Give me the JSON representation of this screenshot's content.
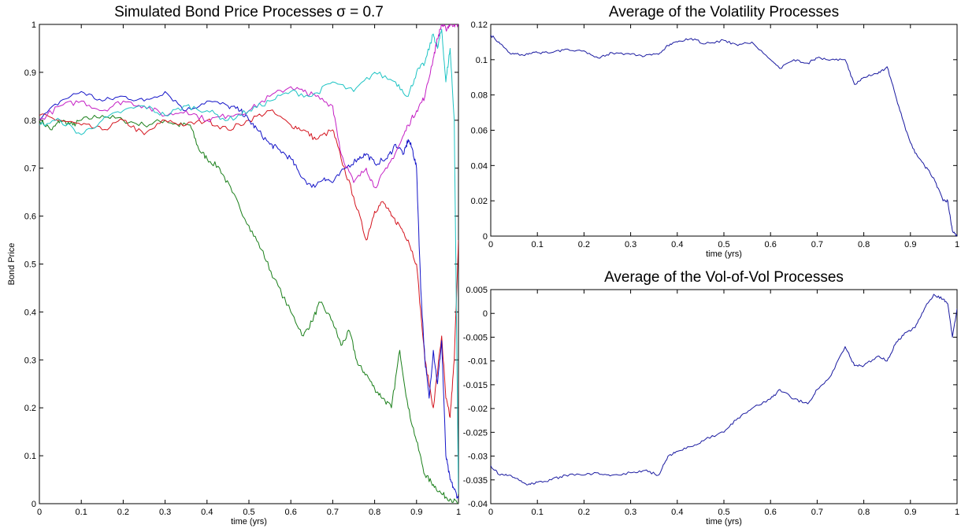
{
  "chart_data": [
    {
      "type": "line",
      "title": "Simulated Bond Price Processes σ = 0.7",
      "xlabel": "time (yrs)",
      "ylabel": "Bond Price",
      "xlim": [
        0,
        1
      ],
      "ylim": [
        0,
        1
      ],
      "xticks": [
        "0",
        "0.1",
        "0.2",
        "0.3",
        "0.4",
        "0.5",
        "0.6",
        "0.7",
        "0.8",
        "0.9",
        "1"
      ],
      "yticks": [
        "0",
        "0.1",
        "0.2",
        "0.3",
        "0.4",
        "0.5",
        "0.6",
        "0.7",
        "0.8",
        "0.9",
        "1"
      ],
      "grid": false,
      "series": [
        {
          "color": "#1a7f1a",
          "x": [
            0,
            0.03,
            0.05,
            0.08,
            0.1,
            0.15,
            0.2,
            0.25,
            0.3,
            0.33,
            0.36,
            0.38,
            0.4,
            0.43,
            0.46,
            0.5,
            0.53,
            0.56,
            0.6,
            0.63,
            0.65,
            0.67,
            0.7,
            0.72,
            0.74,
            0.76,
            0.78,
            0.8,
            0.82,
            0.84,
            0.86,
            0.88,
            0.9,
            0.92,
            0.94,
            0.96,
            0.98,
            1.0
          ],
          "y": [
            0.8,
            0.78,
            0.8,
            0.79,
            0.8,
            0.81,
            0.8,
            0.79,
            0.8,
            0.79,
            0.79,
            0.74,
            0.72,
            0.7,
            0.65,
            0.58,
            0.53,
            0.47,
            0.4,
            0.35,
            0.38,
            0.42,
            0.38,
            0.33,
            0.36,
            0.29,
            0.27,
            0.24,
            0.22,
            0.2,
            0.32,
            0.2,
            0.13,
            0.06,
            0.04,
            0.02,
            0.01,
            0.0
          ]
        },
        {
          "color": "#d4141e",
          "x": [
            0,
            0.05,
            0.1,
            0.15,
            0.2,
            0.25,
            0.3,
            0.35,
            0.4,
            0.45,
            0.5,
            0.55,
            0.6,
            0.63,
            0.66,
            0.7,
            0.72,
            0.75,
            0.78,
            0.8,
            0.82,
            0.84,
            0.86,
            0.88,
            0.9,
            0.92,
            0.94,
            0.96,
            0.97,
            0.98,
            0.99,
            1.0
          ],
          "y": [
            0.81,
            0.8,
            0.79,
            0.78,
            0.8,
            0.77,
            0.8,
            0.79,
            0.8,
            0.78,
            0.8,
            0.82,
            0.79,
            0.78,
            0.76,
            0.78,
            0.72,
            0.64,
            0.55,
            0.61,
            0.63,
            0.6,
            0.58,
            0.55,
            0.5,
            0.3,
            0.2,
            0.35,
            0.22,
            0.18,
            0.3,
            0.55
          ]
        },
        {
          "color": "#1414c8",
          "x": [
            0,
            0.05,
            0.1,
            0.15,
            0.2,
            0.25,
            0.3,
            0.35,
            0.4,
            0.45,
            0.48,
            0.5,
            0.52,
            0.55,
            0.57,
            0.6,
            0.62,
            0.65,
            0.68,
            0.7,
            0.73,
            0.76,
            0.78,
            0.8,
            0.83,
            0.85,
            0.87,
            0.88,
            0.89,
            0.9,
            0.91,
            0.92,
            0.93,
            0.94,
            0.95,
            0.96,
            0.97,
            0.98,
            0.99,
            1.0
          ],
          "y": [
            0.8,
            0.84,
            0.86,
            0.84,
            0.85,
            0.84,
            0.86,
            0.82,
            0.84,
            0.83,
            0.82,
            0.8,
            0.78,
            0.75,
            0.74,
            0.72,
            0.69,
            0.66,
            0.68,
            0.67,
            0.7,
            0.72,
            0.73,
            0.71,
            0.72,
            0.75,
            0.73,
            0.76,
            0.74,
            0.7,
            0.45,
            0.3,
            0.22,
            0.32,
            0.25,
            0.34,
            0.1,
            0.05,
            0.03,
            0.01
          ]
        },
        {
          "color": "#c41ec4",
          "x": [
            0,
            0.05,
            0.1,
            0.15,
            0.2,
            0.25,
            0.3,
            0.35,
            0.4,
            0.45,
            0.5,
            0.55,
            0.6,
            0.63,
            0.66,
            0.7,
            0.72,
            0.75,
            0.78,
            0.8,
            0.83,
            0.86,
            0.88,
            0.9,
            0.92,
            0.94,
            0.95,
            0.96,
            0.97,
            0.98,
            0.99,
            1.0
          ],
          "y": [
            0.8,
            0.83,
            0.84,
            0.82,
            0.84,
            0.83,
            0.81,
            0.82,
            0.8,
            0.81,
            0.82,
            0.85,
            0.87,
            0.86,
            0.85,
            0.83,
            0.73,
            0.67,
            0.7,
            0.66,
            0.7,
            0.75,
            0.79,
            0.82,
            0.85,
            0.93,
            0.97,
            1.0,
            0.99,
            1.0,
            1.0,
            1.0
          ]
        },
        {
          "color": "#1ec4c4",
          "x": [
            0,
            0.05,
            0.1,
            0.15,
            0.2,
            0.25,
            0.3,
            0.35,
            0.4,
            0.45,
            0.5,
            0.55,
            0.6,
            0.65,
            0.7,
            0.75,
            0.8,
            0.85,
            0.88,
            0.9,
            0.92,
            0.94,
            0.95,
            0.96,
            0.97,
            0.98,
            0.99,
            1.0
          ],
          "y": [
            0.79,
            0.8,
            0.77,
            0.8,
            0.82,
            0.83,
            0.81,
            0.83,
            0.82,
            0.8,
            0.82,
            0.84,
            0.86,
            0.85,
            0.88,
            0.86,
            0.9,
            0.88,
            0.85,
            0.9,
            0.92,
            0.98,
            0.95,
            0.99,
            0.88,
            0.95,
            0.8,
            0.02
          ]
        }
      ]
    },
    {
      "type": "line",
      "title": "Average of the Volatility Processes",
      "xlabel": "time (yrs)",
      "ylabel": "",
      "xlim": [
        0,
        1
      ],
      "ylim": [
        0,
        0.12
      ],
      "xticks": [
        "0",
        "0.1",
        "0.2",
        "0.3",
        "0.4",
        "0.5",
        "0.6",
        "0.7",
        "0.8",
        "0.9",
        "1"
      ],
      "yticks": [
        "0",
        "0.02",
        "0.04",
        "0.06",
        "0.08",
        "0.1",
        "0.12"
      ],
      "grid": false,
      "series": [
        {
          "color": "#1a1aa0",
          "x": [
            0,
            0.02,
            0.04,
            0.06,
            0.08,
            0.1,
            0.13,
            0.16,
            0.2,
            0.23,
            0.26,
            0.3,
            0.33,
            0.36,
            0.38,
            0.4,
            0.43,
            0.46,
            0.5,
            0.53,
            0.56,
            0.6,
            0.62,
            0.65,
            0.68,
            0.7,
            0.73,
            0.76,
            0.78,
            0.8,
            0.83,
            0.85,
            0.87,
            0.89,
            0.91,
            0.93,
            0.95,
            0.97,
            0.98,
            0.99,
            1.0
          ],
          "y": [
            0.114,
            0.109,
            0.104,
            0.103,
            0.103,
            0.104,
            0.104,
            0.106,
            0.105,
            0.101,
            0.104,
            0.103,
            0.102,
            0.103,
            0.108,
            0.11,
            0.112,
            0.109,
            0.111,
            0.108,
            0.11,
            0.1,
            0.095,
            0.1,
            0.098,
            0.101,
            0.1,
            0.1,
            0.086,
            0.09,
            0.092,
            0.096,
            0.078,
            0.06,
            0.047,
            0.04,
            0.033,
            0.02,
            0.02,
            0.003,
            0.0
          ]
        }
      ]
    },
    {
      "type": "line",
      "title": "Average of the  Vol-of-Vol Processes",
      "xlabel": "time (yrs)",
      "ylabel": "",
      "xlim": [
        0,
        1
      ],
      "ylim": [
        -0.04,
        0.005
      ],
      "xticks": [
        "0",
        "0.1",
        "0.2",
        "0.3",
        "0.4",
        "0.5",
        "0.6",
        "0.7",
        "0.8",
        "0.9",
        "1"
      ],
      "yticks": [
        "-0.04",
        "-0.035",
        "-0.03",
        "-0.025",
        "-0.02",
        "-0.015",
        "-0.01",
        "-0.005",
        "0",
        "0.005"
      ],
      "grid": false,
      "series": [
        {
          "color": "#1a1aa0",
          "x": [
            0,
            0.02,
            0.04,
            0.06,
            0.08,
            0.1,
            0.13,
            0.16,
            0.2,
            0.23,
            0.26,
            0.3,
            0.33,
            0.36,
            0.38,
            0.4,
            0.43,
            0.46,
            0.5,
            0.53,
            0.56,
            0.6,
            0.62,
            0.65,
            0.68,
            0.7,
            0.73,
            0.76,
            0.78,
            0.8,
            0.83,
            0.85,
            0.87,
            0.89,
            0.91,
            0.93,
            0.95,
            0.97,
            0.98,
            0.99,
            1.0
          ],
          "y": [
            -0.032,
            -0.034,
            -0.034,
            -0.035,
            -0.036,
            -0.0355,
            -0.035,
            -0.034,
            -0.034,
            -0.0335,
            -0.034,
            -0.0335,
            -0.033,
            -0.034,
            -0.03,
            -0.029,
            -0.028,
            -0.0265,
            -0.025,
            -0.022,
            -0.02,
            -0.018,
            -0.016,
            -0.018,
            -0.019,
            -0.016,
            -0.013,
            -0.007,
            -0.011,
            -0.011,
            -0.009,
            -0.01,
            -0.006,
            -0.004,
            -0.003,
            0.001,
            0.004,
            0.003,
            0.002,
            -0.005,
            0.001
          ]
        }
      ]
    }
  ]
}
